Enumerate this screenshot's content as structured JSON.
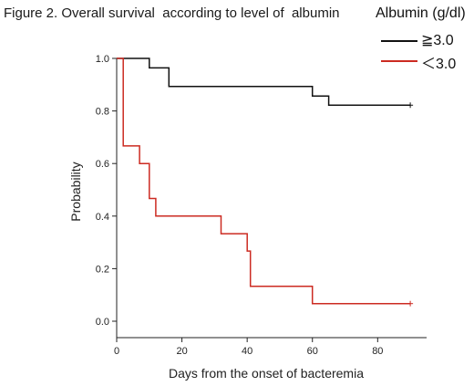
{
  "figure": {
    "title": "Figure 2. Overall survival  according to level of  albumin"
  },
  "chart_data": {
    "type": "line",
    "title": "Figure 2. Overall survival  according to level of  albumin",
    "xlabel": "Days from the onset of bacteremia",
    "ylabel": "Probability",
    "xlim": [
      0,
      95
    ],
    "ylim": [
      0,
      1.0
    ],
    "x_ticks": [
      0,
      20,
      40,
      60,
      80
    ],
    "y_ticks": [
      "0.0",
      "0.2",
      "0.4",
      "0.6",
      "0.8",
      "1.0"
    ],
    "grid": false,
    "legend": {
      "title": "Albumin (g/dl)",
      "placement": "top-right"
    },
    "step": true,
    "series": [
      {
        "name": "≧3.0",
        "color": "#111111",
        "points": [
          [
            0,
            1.0
          ],
          [
            10,
            1.0
          ],
          [
            10,
            0.964
          ],
          [
            16,
            0.964
          ],
          [
            16,
            0.893
          ],
          [
            60,
            0.893
          ],
          [
            60,
            0.857
          ],
          [
            65,
            0.857
          ],
          [
            65,
            0.822
          ],
          [
            90,
            0.822
          ]
        ],
        "censor_marks": [
          [
            90,
            0.822
          ]
        ]
      },
      {
        "name": "＜3.0",
        "color": "#cc2b22",
        "points": [
          [
            0,
            1.0
          ],
          [
            2,
            1.0
          ],
          [
            2,
            0.667
          ],
          [
            7,
            0.667
          ],
          [
            7,
            0.6
          ],
          [
            10,
            0.6
          ],
          [
            10,
            0.467
          ],
          [
            12,
            0.467
          ],
          [
            12,
            0.4
          ],
          [
            32,
            0.4
          ],
          [
            32,
            0.333
          ],
          [
            40,
            0.333
          ],
          [
            40,
            0.267
          ],
          [
            41,
            0.267
          ],
          [
            41,
            0.133
          ],
          [
            60,
            0.133
          ],
          [
            60,
            0.067
          ],
          [
            90,
            0.067
          ]
        ],
        "censor_marks": [
          [
            90,
            0.067
          ]
        ]
      }
    ]
  }
}
